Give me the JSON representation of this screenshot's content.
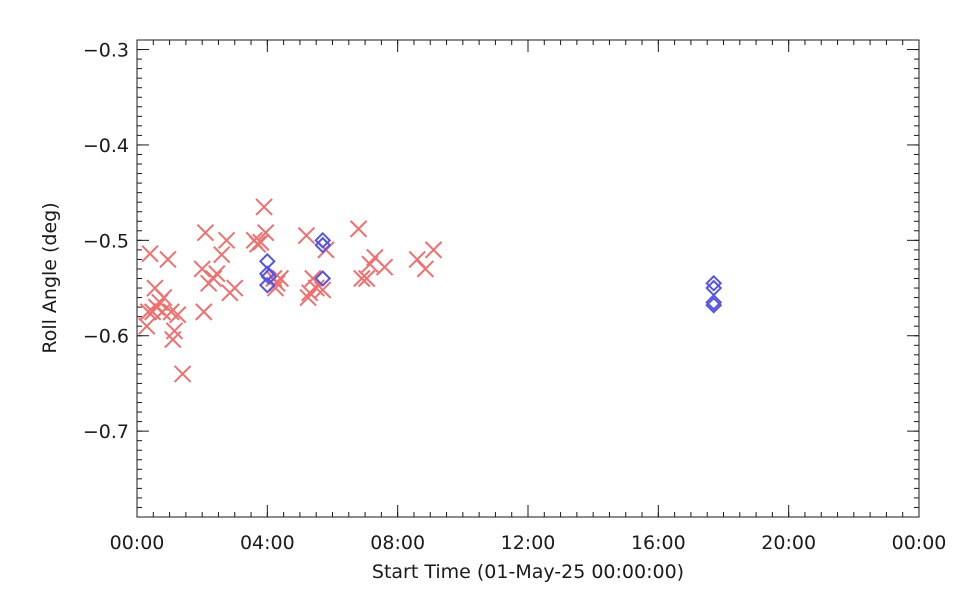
{
  "chart_data": {
    "type": "scatter",
    "xlabel": "Start Time (01-May-25 00:00:00)",
    "ylabel": "Roll Angle (deg)",
    "x_unit": "hours",
    "xlim": [
      0,
      24
    ],
    "ylim": [
      -0.79,
      -0.29
    ],
    "y_reversed": true,
    "x_ticks": [
      {
        "value": 0,
        "label": "00:00"
      },
      {
        "value": 4,
        "label": "04:00"
      },
      {
        "value": 8,
        "label": "08:00"
      },
      {
        "value": 12,
        "label": "12:00"
      },
      {
        "value": 16,
        "label": "16:00"
      },
      {
        "value": 20,
        "label": "20:00"
      },
      {
        "value": 24,
        "label": "00:00"
      }
    ],
    "y_ticks": [
      {
        "value": -0.3,
        "label": "−0.3"
      },
      {
        "value": -0.4,
        "label": "−0.4"
      },
      {
        "value": -0.5,
        "label": "−0.5"
      },
      {
        "value": -0.6,
        "label": "−0.6"
      },
      {
        "value": -0.7,
        "label": "−0.7"
      }
    ],
    "x_minor_step": 0.5,
    "y_minor_step": 0.01,
    "grid": false,
    "series": [
      {
        "marker": "x",
        "color": "#f07070",
        "points": [
          [
            0.3,
            -0.59
          ],
          [
            0.35,
            -0.575
          ],
          [
            0.4,
            -0.514
          ],
          [
            0.48,
            -0.575
          ],
          [
            0.55,
            -0.55
          ],
          [
            0.6,
            -0.57
          ],
          [
            0.7,
            -0.565
          ],
          [
            0.78,
            -0.575
          ],
          [
            0.82,
            -0.56
          ],
          [
            0.95,
            -0.52
          ],
          [
            1.05,
            -0.575
          ],
          [
            1.1,
            -0.604
          ],
          [
            1.15,
            -0.595
          ],
          [
            1.25,
            -0.578
          ],
          [
            1.4,
            -0.64
          ],
          [
            2.0,
            -0.53
          ],
          [
            2.05,
            -0.575
          ],
          [
            2.1,
            -0.492
          ],
          [
            2.2,
            -0.545
          ],
          [
            2.35,
            -0.54
          ],
          [
            2.45,
            -0.535
          ],
          [
            2.6,
            -0.515
          ],
          [
            2.75,
            -0.5
          ],
          [
            2.85,
            -0.555
          ],
          [
            3.0,
            -0.55
          ],
          [
            3.6,
            -0.5
          ],
          [
            3.7,
            -0.504
          ],
          [
            3.8,
            -0.502
          ],
          [
            3.9,
            -0.465
          ],
          [
            3.95,
            -0.492
          ],
          [
            4.2,
            -0.54
          ],
          [
            4.25,
            -0.55
          ],
          [
            4.3,
            -0.545
          ],
          [
            4.4,
            -0.54
          ],
          [
            5.2,
            -0.495
          ],
          [
            5.25,
            -0.56
          ],
          [
            5.3,
            -0.555
          ],
          [
            5.4,
            -0.54
          ],
          [
            5.5,
            -0.55
          ],
          [
            5.7,
            -0.552
          ],
          [
            5.8,
            -0.51
          ],
          [
            6.8,
            -0.488
          ],
          [
            6.9,
            -0.54
          ],
          [
            7.05,
            -0.54
          ],
          [
            7.15,
            -0.525
          ],
          [
            7.3,
            -0.518
          ],
          [
            7.6,
            -0.528
          ],
          [
            8.6,
            -0.52
          ],
          [
            8.85,
            -0.53
          ],
          [
            9.1,
            -0.51
          ]
        ]
      },
      {
        "marker": "diamond",
        "color": "#5555e0",
        "points": [
          [
            4.0,
            -0.522
          ],
          [
            4.0,
            -0.535
          ],
          [
            4.05,
            -0.538
          ],
          [
            4.0,
            -0.547
          ],
          [
            5.7,
            -0.5
          ],
          [
            5.7,
            -0.505
          ],
          [
            5.7,
            -0.54
          ],
          [
            17.7,
            -0.545
          ],
          [
            17.7,
            -0.55
          ],
          [
            17.7,
            -0.565
          ],
          [
            17.7,
            -0.568
          ]
        ]
      }
    ]
  }
}
